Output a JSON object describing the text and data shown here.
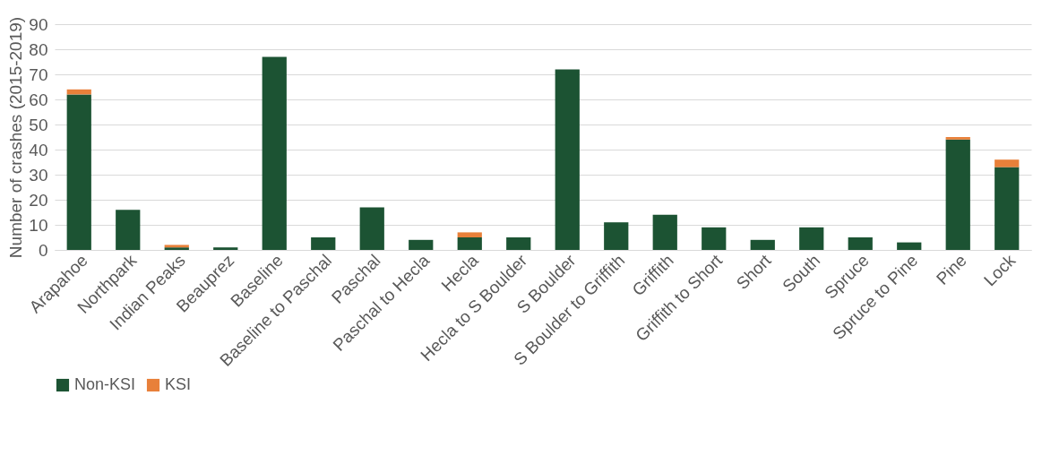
{
  "chart_data": {
    "type": "bar",
    "stacked": true,
    "ylabel": "Number of crashes (2015-2019)",
    "categories": [
      "Arapahoe",
      "Northpark",
      "Indian Peaks",
      "Beauprez",
      "Baseline",
      "Baseline to Paschal",
      "Paschal",
      "Paschal to Hecla",
      "Hecla",
      "Hecla to S Boulder",
      "S Boulder",
      "S Boulder to Griffith",
      "Griffith",
      "Griffith to Short",
      "Short",
      "South",
      "Spruce",
      "Spruce to Pine",
      "Pine",
      "Lock"
    ],
    "series": [
      {
        "name": "Non-KSI",
        "color": "#1c5333",
        "values": [
          62,
          16,
          1,
          1,
          77,
          5,
          17,
          4,
          5,
          5,
          72,
          11,
          14,
          9,
          4,
          9,
          5,
          3,
          44,
          33
        ]
      },
      {
        "name": "KSI",
        "color": "#e8803a",
        "values": [
          2,
          0,
          1,
          0,
          0,
          0,
          0,
          0,
          2,
          0,
          0,
          0,
          0,
          0,
          0,
          0,
          0,
          0,
          1,
          3
        ]
      }
    ],
    "ylim": [
      0,
      90
    ],
    "yticks": [
      0,
      10,
      20,
      30,
      40,
      50,
      60,
      70,
      80,
      90
    ],
    "grid": "y",
    "legend": "bottom"
  }
}
